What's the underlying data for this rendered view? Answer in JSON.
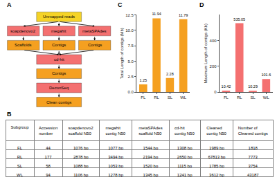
{
  "chart_data": [
    {
      "type": "flowchart",
      "title": "A",
      "levels": [
        {
          "labels": [
            "Unmapped reads"
          ],
          "color": "#f5d327"
        },
        {
          "labels": [
            "soapdenovo2",
            "megahit",
            "metaSPAdes"
          ],
          "color": "#f47070"
        },
        {
          "labels": [
            "Scaffolds",
            "Contigs",
            "Contigs"
          ],
          "color": "#f5a020"
        },
        {
          "labels": [
            "cd-hit"
          ],
          "color": "#f47070"
        },
        {
          "labels": [
            "Contigs"
          ],
          "color": "#f5a020"
        },
        {
          "labels": [
            "DeconSeq"
          ],
          "color": "#f47070"
        },
        {
          "labels": [
            "Clean contigs"
          ],
          "color": "#f5a020"
        }
      ]
    },
    {
      "type": "bar",
      "title": "C",
      "categories": [
        "FL",
        "RL",
        "SL",
        "WL"
      ],
      "values": [
        1.25,
        11.94,
        2.28,
        11.79
      ],
      "colors": [
        "#f5a020",
        "#f5a020",
        "#f5a020",
        "#f5a020"
      ],
      "y_label": "Total Length of contigs (Mb)",
      "ylim": [
        0,
        12.5
      ],
      "yticks": [
        {
          "value": 0,
          "label": "0.0"
        },
        2.5,
        {
          "value": 5,
          "label": "5.0"
        },
        7.5,
        {
          "value": 10,
          "label": "10.0"
        },
        12.5
      ],
      "data_labels": true,
      "grid": false
    },
    {
      "type": "bar",
      "title": "D",
      "categories": [
        "FL",
        "RL",
        "SL",
        "WL"
      ],
      "values": [
        10.42,
        535.05,
        10.29,
        101.6
      ],
      "colors": [
        "#f47070",
        "#f47070",
        "#f47070",
        "#f47070"
      ],
      "y_label": "Maximum Length of contigs (Kb)",
      "ylim": [
        0,
        600
      ],
      "yticks": [
        0,
        200,
        400
      ],
      "data_labels": true,
      "grid": false
    },
    {
      "type": "table",
      "title": "B",
      "headers": [
        "Subgroup",
        "Accession\nnumber",
        "soapdenovo2\nscaffold N50",
        "megahit\ncontig N50",
        "metaSPAdes\nscaffold N50",
        "cd-hit\ncontig N50",
        "Cleaned\ncontig N50",
        "Number of\nCleaned contigs"
      ],
      "rows": [
        [
          "FL",
          "44",
          "1076 bp",
          "1077 bp",
          "1544 bp",
          "1308 bp",
          "1989 bp",
          "1818"
        ],
        [
          "RL",
          "177",
          "2878 bp",
          "3494 bp",
          "2194 bp",
          "2650 bp",
          "67813 bp",
          "7773"
        ],
        [
          "SL",
          "58",
          "1088 bp",
          "1053 bp",
          "1520 bp",
          "1115 bp",
          "1785 bp",
          "3754"
        ],
        [
          "WL",
          "94",
          "1106 bp",
          "1278 bp",
          "1345 bp",
          "1241 bp",
          "3612 bp",
          "43187"
        ]
      ]
    }
  ]
}
